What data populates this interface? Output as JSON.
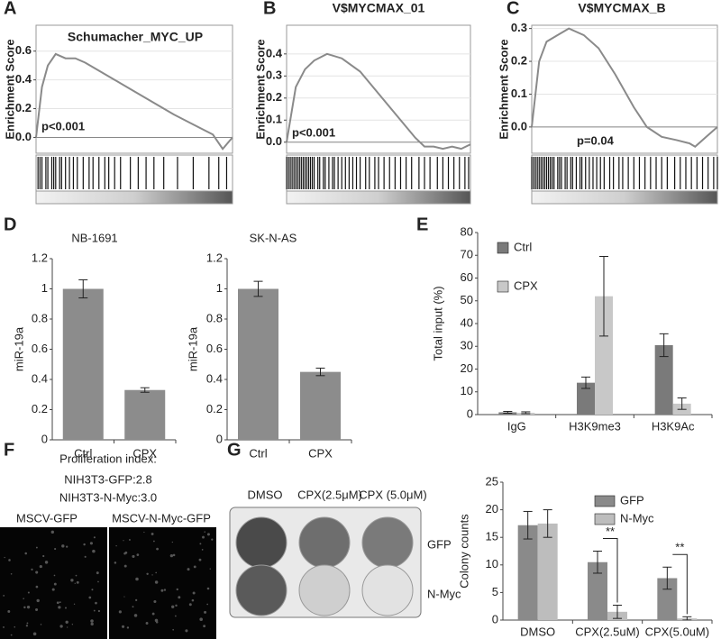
{
  "panel_labels": [
    "A",
    "B",
    "C",
    "D",
    "E",
    "F",
    "G"
  ],
  "chart_data": [
    {
      "type": "line",
      "title": "Schumacher_MYC_UP",
      "y_label": "Enrichment Score",
      "annotation": "p<0.001",
      "color": "#8a8a8a",
      "x": [
        0,
        3,
        6,
        10,
        15,
        20,
        25,
        30,
        40,
        50,
        60,
        70,
        80,
        90,
        95,
        100
      ],
      "values": [
        0,
        0.35,
        0.5,
        0.58,
        0.55,
        0.55,
        0.52,
        0.48,
        0.4,
        0.32,
        0.24,
        0.16,
        0.09,
        0.02,
        -0.08,
        0
      ],
      "xlim": [
        0,
        100
      ],
      "ylim": [
        -0.11,
        0.78
      ],
      "yticks": [
        {
          "value": 0,
          "label": "0.0"
        },
        0.2,
        0.4,
        0.6
      ],
      "grid": true,
      "hits": [
        1,
        2,
        3,
        5,
        6,
        8,
        9,
        10,
        12,
        13,
        15,
        17,
        19,
        21,
        24,
        27,
        29,
        32,
        35,
        37,
        40,
        43,
        48,
        52,
        56,
        60,
        65,
        72,
        80,
        88,
        93,
        97
      ]
    },
    {
      "type": "line",
      "title": "V$MYCMAX_01",
      "y_label": "Enrichment Score",
      "annotation": "p<0.001",
      "color": "#8a8a8a",
      "x": [
        0,
        5,
        10,
        15,
        22,
        30,
        40,
        50,
        60,
        70,
        75,
        80,
        85,
        90,
        95,
        100
      ],
      "values": [
        0,
        0.25,
        0.33,
        0.37,
        0.4,
        0.38,
        0.32,
        0.22,
        0.12,
        0.02,
        -0.02,
        -0.02,
        -0.03,
        -0.02,
        -0.03,
        -0.01
      ],
      "xlim": [
        0,
        100
      ],
      "ylim": [
        -0.05,
        0.53
      ],
      "yticks": [
        {
          "value": 0,
          "label": "0.0"
        },
        0.1,
        0.2,
        0.3,
        0.4
      ],
      "grid": true,
      "hits": [
        0,
        1,
        2,
        3,
        4,
        5,
        6,
        7,
        8,
        9,
        10,
        11,
        12,
        13,
        14,
        15,
        17,
        18,
        20,
        21,
        23,
        25,
        26,
        28,
        30,
        32,
        34,
        36,
        38,
        40,
        43,
        45,
        48,
        50,
        53,
        56,
        59,
        62,
        65,
        68,
        72,
        75,
        78,
        82,
        85,
        88,
        91,
        94,
        97,
        99
      ]
    },
    {
      "type": "line",
      "title": "V$MYCMAX_B",
      "y_label": "Enrichment Score",
      "annotation": "p=0.04",
      "color": "#8a8a8a",
      "x": [
        0,
        4,
        8,
        14,
        20,
        28,
        36,
        45,
        55,
        62,
        70,
        78,
        85,
        88,
        94,
        100
      ],
      "values": [
        0,
        0.2,
        0.26,
        0.28,
        0.3,
        0.28,
        0.24,
        0.16,
        0.06,
        0,
        -0.03,
        -0.04,
        -0.05,
        -0.06,
        -0.03,
        0
      ],
      "xlim": [
        0,
        100
      ],
      "ylim": [
        -0.08,
        0.31
      ],
      "yticks": [
        {
          "value": 0,
          "label": "0.0"
        },
        0.1,
        0.2,
        0.3
      ],
      "grid": true,
      "hits": [
        0,
        1,
        2,
        3,
        4,
        5,
        6,
        7,
        8,
        9,
        10,
        11,
        12,
        14,
        15,
        16,
        18,
        19,
        21,
        22,
        24,
        26,
        27,
        29,
        31,
        33,
        35,
        37,
        39,
        42,
        44,
        47,
        49,
        52,
        55,
        58,
        61,
        64,
        67,
        70,
        73,
        77,
        80,
        83,
        86,
        89,
        92,
        95,
        98,
        100
      ]
    },
    {
      "type": "bar",
      "title": "NB-1691",
      "y_label": "miR-19a",
      "categories": [
        "Ctrl",
        "CPX"
      ],
      "values": [
        1,
        0.33
      ],
      "errors": [
        0.06,
        0.015
      ],
      "color": "#8c8c8c",
      "ylim": [
        0,
        1.2
      ],
      "yticks": [
        0,
        0.2,
        0.4,
        0.6,
        0.8,
        1,
        1.2
      ]
    },
    {
      "type": "bar",
      "title": "SK-N-AS",
      "y_label": "miR-19a",
      "categories": [
        "Ctrl",
        "CPX"
      ],
      "values": [
        1,
        0.45
      ],
      "errors": [
        0.05,
        0.025
      ],
      "color": "#8c8c8c",
      "ylim": [
        0,
        1.2
      ],
      "yticks": [
        0,
        0.2,
        0.4,
        0.6,
        0.8,
        1,
        1.2
      ]
    },
    {
      "type": "grouped_bar",
      "y_label": "Total input (%)",
      "categories": [
        "IgG",
        "H3K9me3",
        "H3K9Ac"
      ],
      "series": [
        {
          "name": "Ctrl",
          "color": "#7a7a7a",
          "values": [
            1,
            14,
            30.5
          ],
          "errors": [
            0.4,
            2.5,
            5
          ]
        },
        {
          "name": "CPX",
          "color": "#c8c8c8",
          "values": [
            0.8,
            52,
            4.8
          ],
          "errors": [
            0.4,
            17.5,
            2.5
          ]
        }
      ],
      "ylim": [
        0,
        80
      ],
      "yticks": [
        0,
        10,
        20,
        30,
        40,
        50,
        60,
        70,
        80
      ]
    },
    {
      "type": "grouped_bar",
      "y_label": "Colony counts",
      "categories": [
        "DMSO",
        "CPX(2.5uM)",
        "CPX(5.0uM)"
      ],
      "series": [
        {
          "name": "GFP",
          "color": "#8a8a8a",
          "values": [
            17.2,
            10.5,
            7.6
          ],
          "errors": [
            2.5,
            2,
            2
          ]
        },
        {
          "name": "N-Myc",
          "color": "#bdbdbd",
          "values": [
            17.5,
            1.5,
            0.3
          ],
          "errors": [
            2.5,
            1.2,
            0.3
          ]
        }
      ],
      "ylim": [
        0,
        25
      ],
      "yticks": [
        0,
        5,
        10,
        15,
        20,
        25
      ],
      "annotations": [
        "**",
        "**"
      ]
    }
  ],
  "panel_f": {
    "heading": "Proliferation index:",
    "lines": [
      "NIH3T3-GFP:2.8",
      "NIH3T3-N-Myc:3.0"
    ],
    "images": [
      "MSCV-GFP",
      "MSCV-N-Myc-GFP"
    ]
  },
  "panel_g": {
    "columns": [
      "DMSO",
      "CPX(2.5μM)",
      "CPX (5.0μM)"
    ],
    "rows": [
      "GFP",
      "N-Myc"
    ]
  }
}
